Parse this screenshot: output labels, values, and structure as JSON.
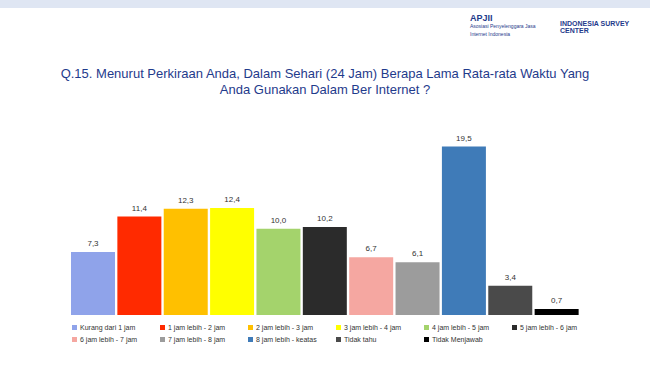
{
  "chart_data": {
    "type": "bar",
    "title": "Q.15. Menurut Perkiraan Anda, Dalam Sehari (24 Jam) Berapa Lama Rata-rata Waktu Yang Anda Gunakan Dalam Ber Internet ?",
    "annotations": [
      "APJII",
      "Asosiasi Penyelenggara Jasa Internet Indonesia",
      "INDONESIA SURVEY CENTER"
    ],
    "categories": [
      "Kurang dari 1 jam",
      "1 jam lebih - 2 jam",
      "2 jam lebih - 3 jam",
      "3 jam lebih - 4 jam",
      "4 jam lebih - 5 jam",
      "5 jam lebih - 6 jam",
      "6 jam lebih - 7 jam",
      "7 jam lebih - 8 jam",
      "8 jam lebih - keatas",
      "Tidak tahu",
      "Tidak Menjawab"
    ],
    "values": [
      7.3,
      11.4,
      12.3,
      12.4,
      10.0,
      10.2,
      6.7,
      6.1,
      19.5,
      3.4,
      0.7
    ],
    "value_labels": [
      "7,3",
      "11,4",
      "12,3",
      "12,4",
      "10,0",
      "10,2",
      "6,7",
      "6,1",
      "19,5",
      "3,4",
      "0,7"
    ],
    "colors": [
      "#8fa3ea",
      "#ff2a00",
      "#ffc000",
      "#ffff00",
      "#a4d36c",
      "#2b2b2b",
      "#f5a7a1",
      "#9c9c9c",
      "#3f7bb8",
      "#4a4a4a",
      "#000000"
    ],
    "ylim": [
      0,
      22
    ],
    "data_labels": true,
    "tick_labels": false,
    "legend": "bottom"
  }
}
